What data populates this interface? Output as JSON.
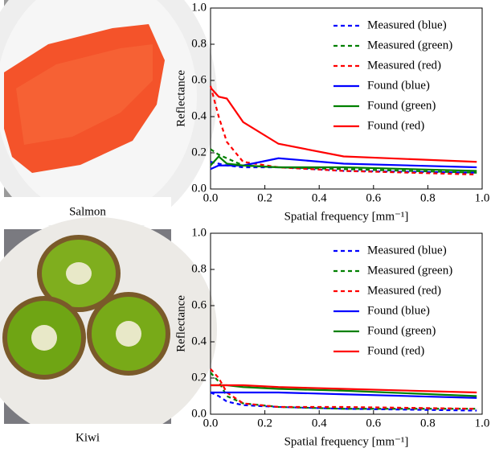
{
  "images": [
    {
      "caption": "Salmon"
    },
    {
      "caption": "Kiwi"
    }
  ],
  "chart_data": [
    {
      "type": "line",
      "xlabel": "Spatial frequency [mm⁻¹]",
      "ylabel": "Reflectance",
      "x": [
        0,
        0.03,
        0.06,
        0.12,
        0.25,
        0.49,
        0.98
      ],
      "xlim": [
        0,
        1
      ],
      "ylim": [
        0,
        1
      ],
      "xticks": [
        {
          "value": 0,
          "label": "0.0"
        },
        {
          "value": 0.2,
          "label": "0.2"
        },
        {
          "value": 0.4,
          "label": "0.4"
        },
        {
          "value": 0.6,
          "label": "0.6"
        },
        {
          "value": 0.8,
          "label": "0.8"
        },
        {
          "value": 1,
          "label": "1.0"
        }
      ],
      "yticks": [
        {
          "value": 0,
          "label": "0.0"
        },
        {
          "value": 0.2,
          "label": "0.2"
        },
        {
          "value": 0.4,
          "label": "0.4"
        },
        {
          "value": 0.6,
          "label": "0.6"
        },
        {
          "value": 0.8,
          "label": "0.8"
        },
        {
          "value": 1,
          "label": "1.0"
        }
      ],
      "legend": "upper right",
      "grid": false,
      "series": [
        {
          "name": "Measured (blue)",
          "color": "#0000ff",
          "dashed": true,
          "values": [
            0.15,
            0.14,
            0.13,
            0.12,
            0.12,
            0.1,
            0.09
          ]
        },
        {
          "name": "Measured (green)",
          "color": "#008000",
          "dashed": true,
          "values": [
            0.22,
            0.19,
            0.17,
            0.13,
            0.12,
            0.11,
            0.09
          ]
        },
        {
          "name": "Measured (red)",
          "color": "#ff0000",
          "dashed": true,
          "values": [
            0.57,
            0.4,
            0.26,
            0.15,
            0.12,
            0.1,
            0.08
          ]
        },
        {
          "name": "Found (blue)",
          "color": "#0000ff",
          "dashed": false,
          "values": [
            0.11,
            0.13,
            0.13,
            0.13,
            0.17,
            0.14,
            0.12
          ]
        },
        {
          "name": "Found (green)",
          "color": "#008000",
          "dashed": false,
          "values": [
            0.13,
            0.18,
            0.14,
            0.13,
            0.12,
            0.12,
            0.1
          ]
        },
        {
          "name": "Found (red)",
          "color": "#ff0000",
          "dashed": false,
          "values": [
            0.56,
            0.51,
            0.5,
            0.37,
            0.25,
            0.18,
            0.15
          ]
        }
      ]
    },
    {
      "type": "line",
      "xlabel": "Spatial frequency [mm⁻¹]",
      "ylabel": "Reflectance",
      "x": [
        0,
        0.03,
        0.06,
        0.12,
        0.25,
        0.49,
        0.98
      ],
      "xlim": [
        0,
        1
      ],
      "ylim": [
        0,
        1
      ],
      "xticks": [
        {
          "value": 0,
          "label": "0.0"
        },
        {
          "value": 0.2,
          "label": "0.2"
        },
        {
          "value": 0.4,
          "label": "0.4"
        },
        {
          "value": 0.6,
          "label": "0.6"
        },
        {
          "value": 0.8,
          "label": "0.8"
        },
        {
          "value": 1,
          "label": "1.0"
        }
      ],
      "yticks": [
        {
          "value": 0,
          "label": "0.0"
        },
        {
          "value": 0.2,
          "label": "0.2"
        },
        {
          "value": 0.4,
          "label": "0.4"
        },
        {
          "value": 0.6,
          "label": "0.6"
        },
        {
          "value": 0.8,
          "label": "0.8"
        },
        {
          "value": 1,
          "label": "1.0"
        }
      ],
      "legend": "upper right",
      "grid": false,
      "series": [
        {
          "name": "Measured (blue)",
          "color": "#0000ff",
          "dashed": true,
          "values": [
            0.12,
            0.1,
            0.07,
            0.05,
            0.04,
            0.03,
            0.02
          ]
        },
        {
          "name": "Measured (green)",
          "color": "#008000",
          "dashed": true,
          "values": [
            0.23,
            0.18,
            0.1,
            0.06,
            0.04,
            0.03,
            0.03
          ]
        },
        {
          "name": "Measured (red)",
          "color": "#ff0000",
          "dashed": true,
          "values": [
            0.25,
            0.2,
            0.12,
            0.06,
            0.04,
            0.04,
            0.03
          ]
        },
        {
          "name": "Found (blue)",
          "color": "#0000ff",
          "dashed": false,
          "values": [
            0.12,
            0.12,
            0.12,
            0.12,
            0.12,
            0.11,
            0.09
          ]
        },
        {
          "name": "Found (green)",
          "color": "#008000",
          "dashed": false,
          "values": [
            0.16,
            0.16,
            0.16,
            0.15,
            0.14,
            0.13,
            0.1
          ]
        },
        {
          "name": "Found (red)",
          "color": "#ff0000",
          "dashed": false,
          "values": [
            0.16,
            0.16,
            0.16,
            0.16,
            0.15,
            0.14,
            0.12
          ]
        }
      ]
    }
  ]
}
